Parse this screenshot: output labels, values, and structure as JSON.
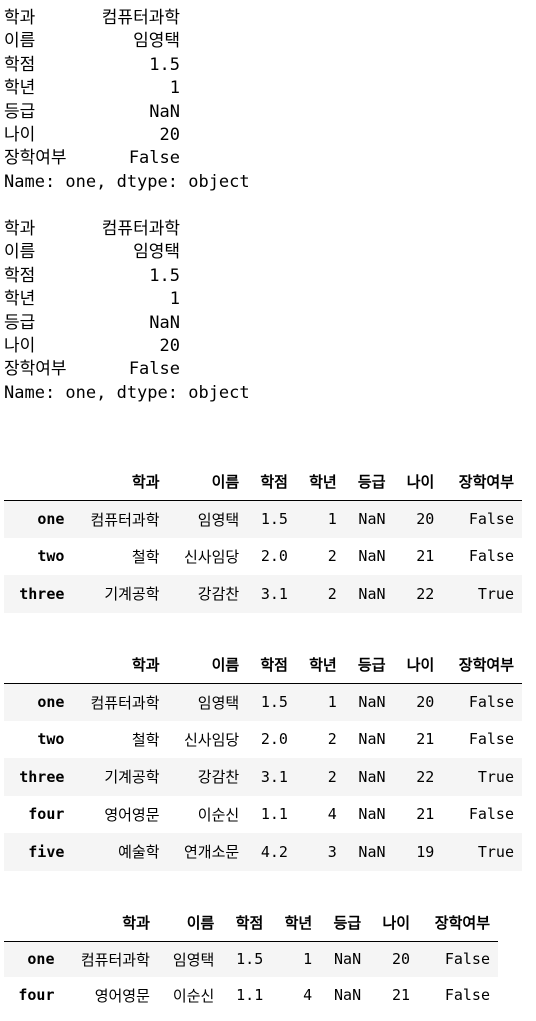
{
  "series_outputs": [
    {
      "lines": [
        {
          "key": "학과",
          "value": "컴퓨터과학"
        },
        {
          "key": "이름",
          "value": "임영택"
        },
        {
          "key": "학점",
          "value": "1.5"
        },
        {
          "key": "학년",
          "value": "1"
        },
        {
          "key": "등급",
          "value": "NaN"
        },
        {
          "key": "나이",
          "value": "20"
        },
        {
          "key": "장학여부",
          "value": "False"
        }
      ],
      "footer": "Name: one, dtype: object"
    },
    {
      "lines": [
        {
          "key": "학과",
          "value": "컴퓨터과학"
        },
        {
          "key": "이름",
          "value": "임영택"
        },
        {
          "key": "학점",
          "value": "1.5"
        },
        {
          "key": "학년",
          "value": "1"
        },
        {
          "key": "등급",
          "value": "NaN"
        },
        {
          "key": "나이",
          "value": "20"
        },
        {
          "key": "장학여부",
          "value": "False"
        }
      ],
      "footer": "Name: one, dtype: object"
    }
  ],
  "dataframes": [
    {
      "columns": [
        "",
        "학과",
        "이름",
        "학점",
        "학년",
        "등급",
        "나이",
        "장학여부"
      ],
      "rows": [
        [
          "one",
          "컴퓨터과학",
          "임영택",
          "1.5",
          "1",
          "NaN",
          "20",
          "False"
        ],
        [
          "two",
          "철학",
          "신사임당",
          "2.0",
          "2",
          "NaN",
          "21",
          "False"
        ],
        [
          "three",
          "기계공학",
          "강감찬",
          "3.1",
          "2",
          "NaN",
          "22",
          "True"
        ]
      ]
    },
    {
      "columns": [
        "",
        "학과",
        "이름",
        "학점",
        "학년",
        "등급",
        "나이",
        "장학여부"
      ],
      "rows": [
        [
          "one",
          "컴퓨터과학",
          "임영택",
          "1.5",
          "1",
          "NaN",
          "20",
          "False"
        ],
        [
          "two",
          "철학",
          "신사임당",
          "2.0",
          "2",
          "NaN",
          "21",
          "False"
        ],
        [
          "three",
          "기계공학",
          "강감찬",
          "3.1",
          "2",
          "NaN",
          "22",
          "True"
        ],
        [
          "four",
          "영어영문",
          "이순신",
          "1.1",
          "4",
          "NaN",
          "21",
          "False"
        ],
        [
          "five",
          "예술학",
          "연개소문",
          "4.2",
          "3",
          "NaN",
          "19",
          "True"
        ]
      ]
    },
    {
      "columns": [
        "",
        "학과",
        "이름",
        "학점",
        "학년",
        "등급",
        "나이",
        "장학여부"
      ],
      "rows": [
        [
          "one",
          "컴퓨터과학",
          "임영택",
          "1.5",
          "1",
          "NaN",
          "20",
          "False"
        ],
        [
          "four",
          "영어영문",
          "이순신",
          "1.1",
          "4",
          "NaN",
          "21",
          "False"
        ]
      ]
    }
  ]
}
